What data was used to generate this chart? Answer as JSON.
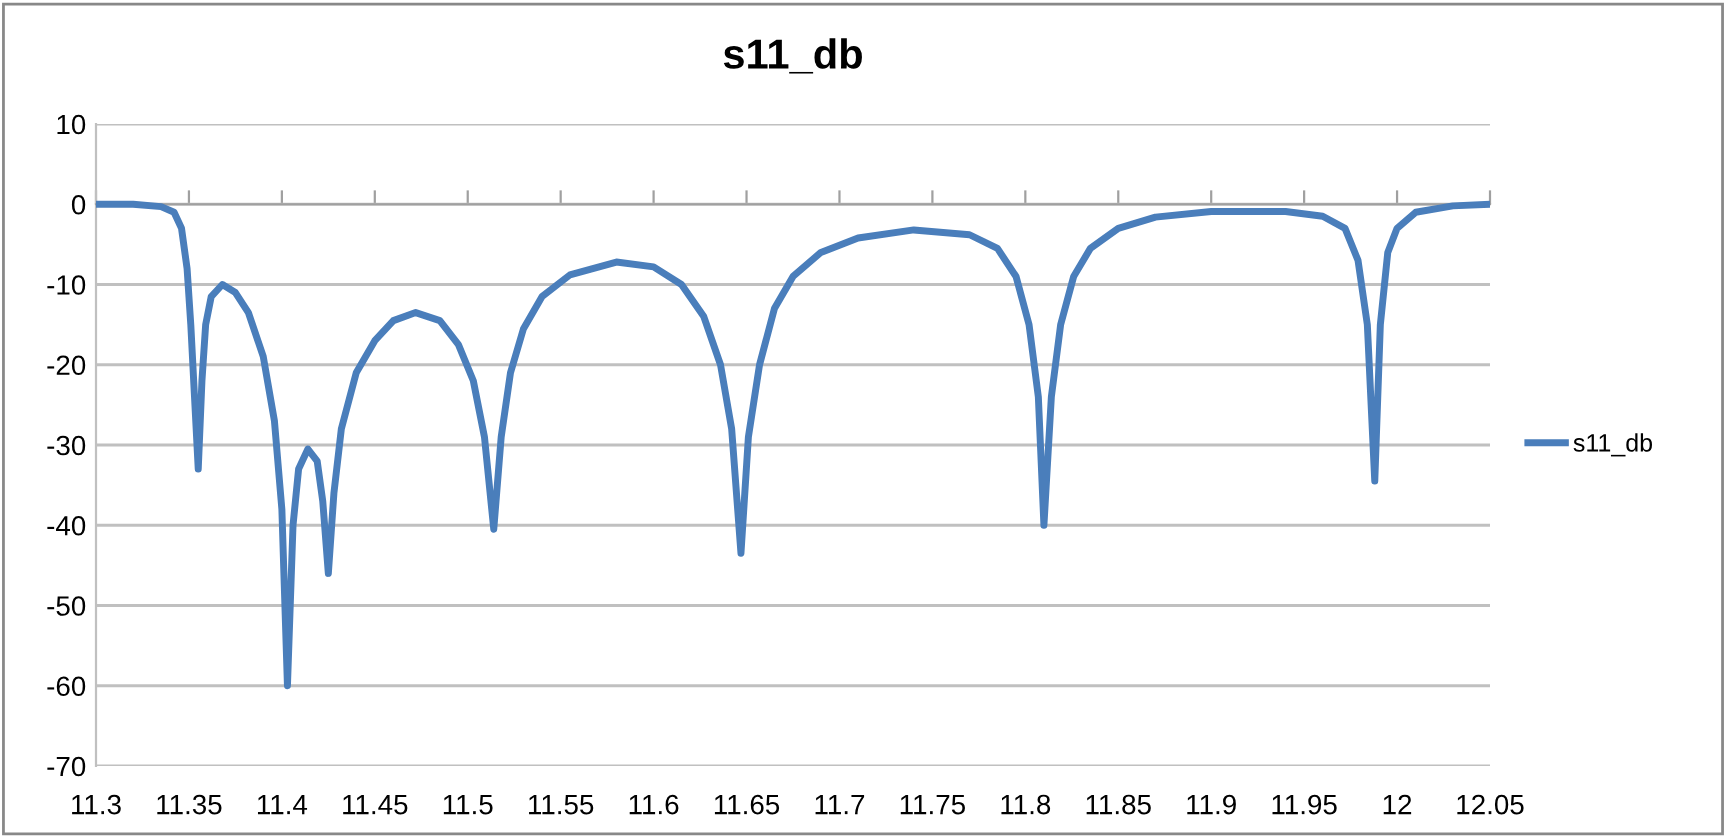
{
  "chart_data": {
    "type": "line",
    "title": "s11_db",
    "x": [
      11.3,
      11.32,
      11.335,
      11.342,
      11.346,
      11.349,
      11.351,
      11.353,
      11.355,
      11.357,
      11.359,
      11.362,
      11.368,
      11.375,
      11.382,
      11.39,
      11.396,
      11.4,
      11.403,
      11.406,
      11.409,
      11.414,
      11.419,
      11.422,
      11.425,
      11.428,
      11.432,
      11.44,
      11.45,
      11.46,
      11.472,
      11.485,
      11.495,
      11.503,
      11.509,
      11.514,
      11.518,
      11.523,
      11.53,
      11.54,
      11.555,
      11.58,
      11.6,
      11.615,
      11.627,
      11.636,
      11.642,
      11.647,
      11.651,
      11.657,
      11.665,
      11.675,
      11.69,
      11.71,
      11.74,
      11.77,
      11.785,
      11.795,
      11.802,
      11.807,
      11.81,
      11.814,
      11.819,
      11.826,
      11.835,
      11.85,
      11.87,
      11.9,
      11.94,
      11.96,
      11.972,
      11.979,
      11.984,
      11.988,
      11.991,
      11.995,
      12.0,
      12.01,
      12.03,
      12.05
    ],
    "series": [
      {
        "name": "s11_db",
        "color": "#4a7ebb",
        "values": [
          0,
          0,
          -0.3,
          -1,
          -3,
          -8,
          -15,
          -24,
          -33,
          -22,
          -15,
          -11.5,
          -10,
          -11,
          -13.5,
          -19,
          -27,
          -38,
          -60,
          -40,
          -33,
          -30.5,
          -32,
          -37,
          -46,
          -36,
          -28,
          -21,
          -17,
          -14.5,
          -13.5,
          -14.5,
          -17.5,
          -22,
          -29,
          -40.5,
          -29,
          -21,
          -15.5,
          -11.5,
          -8.8,
          -7.2,
          -7.8,
          -10,
          -14,
          -20,
          -28,
          -43.5,
          -29,
          -20,
          -13,
          -9,
          -6,
          -4.2,
          -3.2,
          -3.8,
          -5.5,
          -9,
          -15,
          -24,
          -40,
          -24,
          -15,
          -9,
          -5.5,
          -3,
          -1.6,
          -0.9,
          -0.9,
          -1.5,
          -3,
          -7,
          -15,
          -34.5,
          -15,
          -6,
          -3,
          -1,
          -0.2,
          0
        ]
      }
    ],
    "xlim": [
      11.3,
      12.05
    ],
    "xticks": [
      11.3,
      11.35,
      11.4,
      11.45,
      11.5,
      11.55,
      11.6,
      11.65,
      11.7,
      11.75,
      11.8,
      11.85,
      11.9,
      11.95,
      12,
      12.05
    ],
    "ylim": [
      -70,
      10
    ],
    "yticks": [
      -70,
      -60,
      -50,
      -40,
      -30,
      -20,
      -10,
      0,
      10
    ],
    "grid": "y",
    "legend": "right",
    "marker": "none",
    "line_style": "solid"
  }
}
